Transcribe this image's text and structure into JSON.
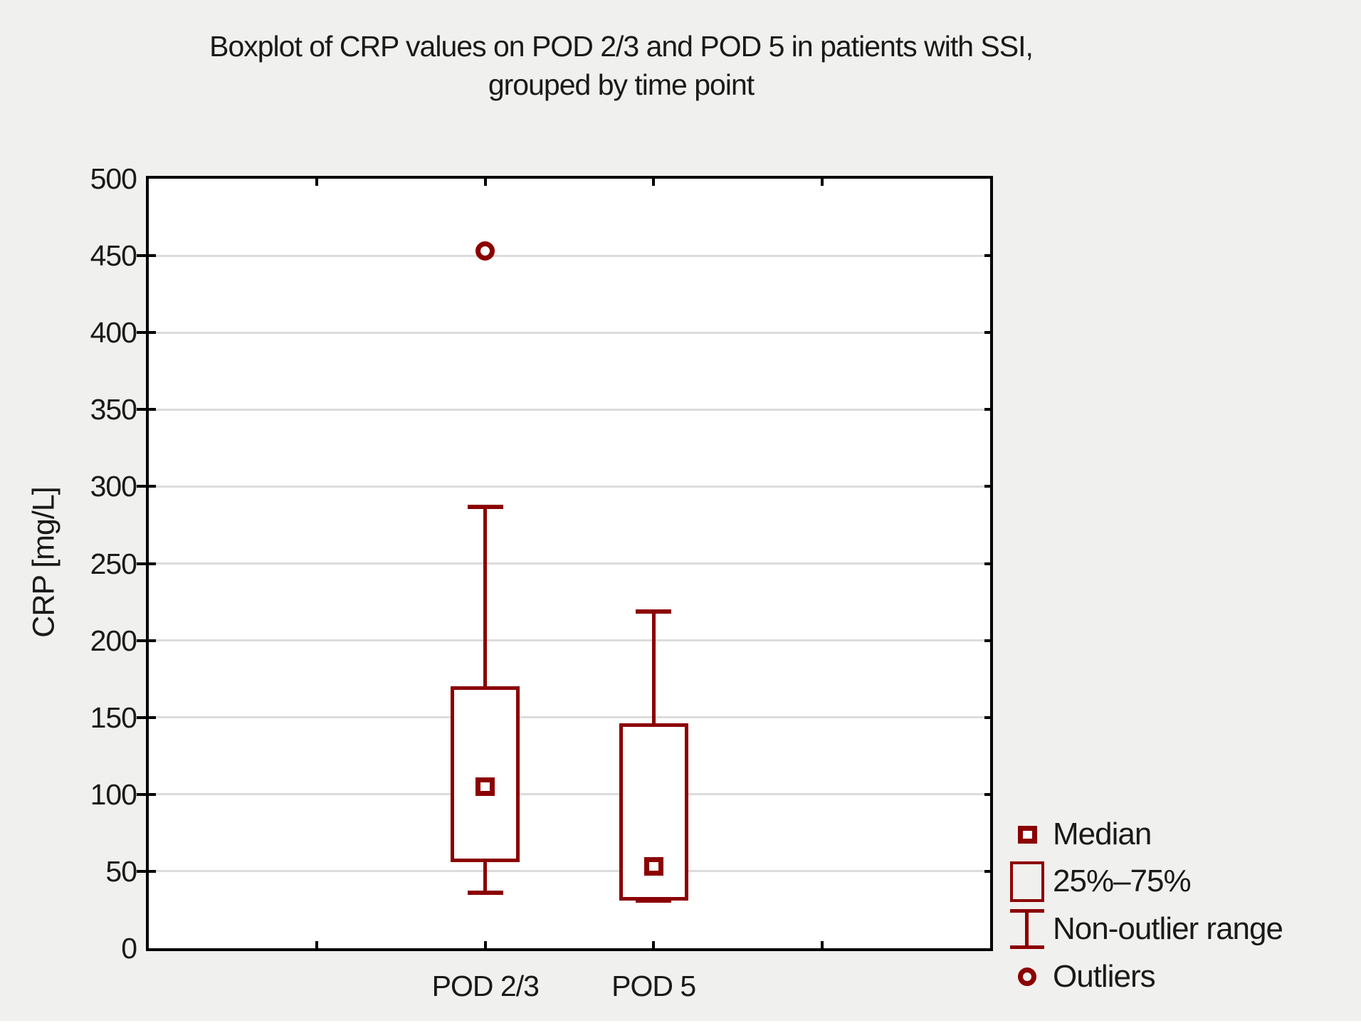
{
  "title": {
    "line1": "Boxplot of CRP values on POD 2/3 and POD 5 in patients with SSI,",
    "line2": "grouped by time point"
  },
  "colors": {
    "series": "#8B0000",
    "background": "#F0F0EE",
    "plot_background": "#FFFFFF",
    "gridline": "#DCDCDC",
    "axis": "#000000",
    "text": "#1A1A1A"
  },
  "y_axis": {
    "label": "CRP [mg/L]",
    "tick_labels": [
      "0",
      "50",
      "100",
      "150",
      "200",
      "250",
      "300",
      "350",
      "400",
      "450",
      "500"
    ]
  },
  "x_axis": {
    "tick_labels": [
      "POD 2/3",
      "POD 5"
    ]
  },
  "legend": {
    "items": [
      {
        "icon": "median-square-icon",
        "label": "Median"
      },
      {
        "icon": "iqr-box-icon",
        "label": "25%–75%"
      },
      {
        "icon": "whisker-icon",
        "label": "Non-outlier range"
      },
      {
        "icon": "outlier-circle-icon",
        "label": "Outliers"
      }
    ]
  },
  "chart_data": {
    "type": "boxplot",
    "title": "Boxplot of CRP values on POD 2/3 and POD 5 in patients with SSI, grouped by time point",
    "xlabel": "",
    "ylabel": "CRP [mg/L]",
    "ylim": [
      0,
      500
    ],
    "ytick_step": 50,
    "grid": "horizontal",
    "legend_position": "bottom-right",
    "categories": [
      "POD 2/3",
      "POD 5"
    ],
    "category_positions": [
      0.4,
      0.6
    ],
    "axis_tick_positions": [
      0.2,
      0.4,
      0.6,
      0.8
    ],
    "series": [
      {
        "category": "POD 2/3",
        "median": 105,
        "q1": 57,
        "q3": 169,
        "whisker_low": 36,
        "whisker_high": 287,
        "outliers": [
          453
        ]
      },
      {
        "category": "POD 5",
        "median": 53,
        "q1": 32,
        "q3": 145,
        "whisker_low": 31,
        "whisker_high": 219,
        "outliers": []
      }
    ]
  }
}
